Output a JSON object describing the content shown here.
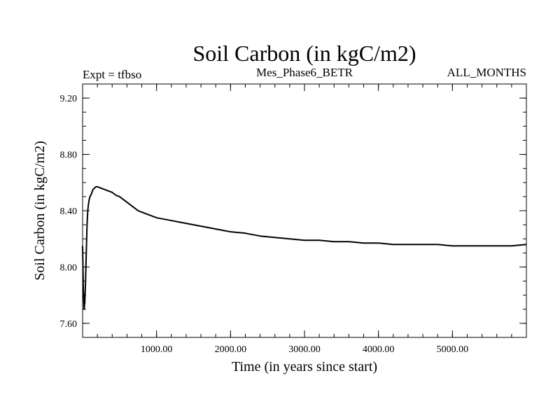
{
  "chart_data": {
    "type": "line",
    "title": "Soil Carbon (in kgC/m2)",
    "subtitle_left": "Expt = tfbso",
    "subtitle_center": "Mes_Phase6_BETR",
    "subtitle_right": "ALL_MONTHS",
    "xlabel": "Time (in years since start)",
    "ylabel": "Soil Carbon (in kgC/m2)",
    "xlim": [
      0,
      6000
    ],
    "ylim": [
      7.5,
      9.3
    ],
    "x_ticks": [
      {
        "value": 1000,
        "label": "1000.00"
      },
      {
        "value": 2000,
        "label": "2000.00"
      },
      {
        "value": 3000,
        "label": "3000.00"
      },
      {
        "value": 4000,
        "label": "4000.00"
      },
      {
        "value": 5000,
        "label": "5000.00"
      }
    ],
    "y_ticks": [
      {
        "value": 7.6,
        "label": "7.60"
      },
      {
        "value": 8.0,
        "label": "8.00"
      },
      {
        "value": 8.4,
        "label": "8.40"
      },
      {
        "value": 8.8,
        "label": "8.80"
      },
      {
        "value": 9.2,
        "label": "9.20"
      }
    ],
    "series": [
      {
        "color": "#000000",
        "x": [
          0,
          10,
          20,
          30,
          40,
          50,
          60,
          70,
          80,
          90,
          100,
          120,
          140,
          160,
          180,
          200,
          250,
          300,
          350,
          400,
          450,
          500,
          550,
          600,
          650,
          700,
          750,
          800,
          850,
          900,
          950,
          1000,
          1100,
          1200,
          1300,
          1400,
          1500,
          1600,
          1700,
          1800,
          1900,
          2000,
          2200,
          2400,
          2600,
          2800,
          3000,
          3200,
          3400,
          3600,
          3800,
          4000,
          4200,
          4400,
          4600,
          4800,
          5000,
          5200,
          5400,
          5600,
          5800,
          6000
        ],
        "y": [
          8.15,
          7.85,
          7.7,
          7.75,
          7.9,
          8.1,
          8.3,
          8.4,
          8.45,
          8.48,
          8.5,
          8.52,
          8.55,
          8.56,
          8.57,
          8.57,
          8.56,
          8.55,
          8.54,
          8.53,
          8.51,
          8.5,
          8.48,
          8.46,
          8.44,
          8.42,
          8.4,
          8.39,
          8.38,
          8.37,
          8.36,
          8.35,
          8.34,
          8.33,
          8.32,
          8.31,
          8.3,
          8.29,
          8.28,
          8.27,
          8.26,
          8.25,
          8.24,
          8.22,
          8.21,
          8.2,
          8.19,
          8.19,
          8.18,
          8.18,
          8.17,
          8.17,
          8.16,
          8.16,
          8.16,
          8.16,
          8.15,
          8.15,
          8.15,
          8.15,
          8.15,
          8.16
        ]
      }
    ]
  }
}
